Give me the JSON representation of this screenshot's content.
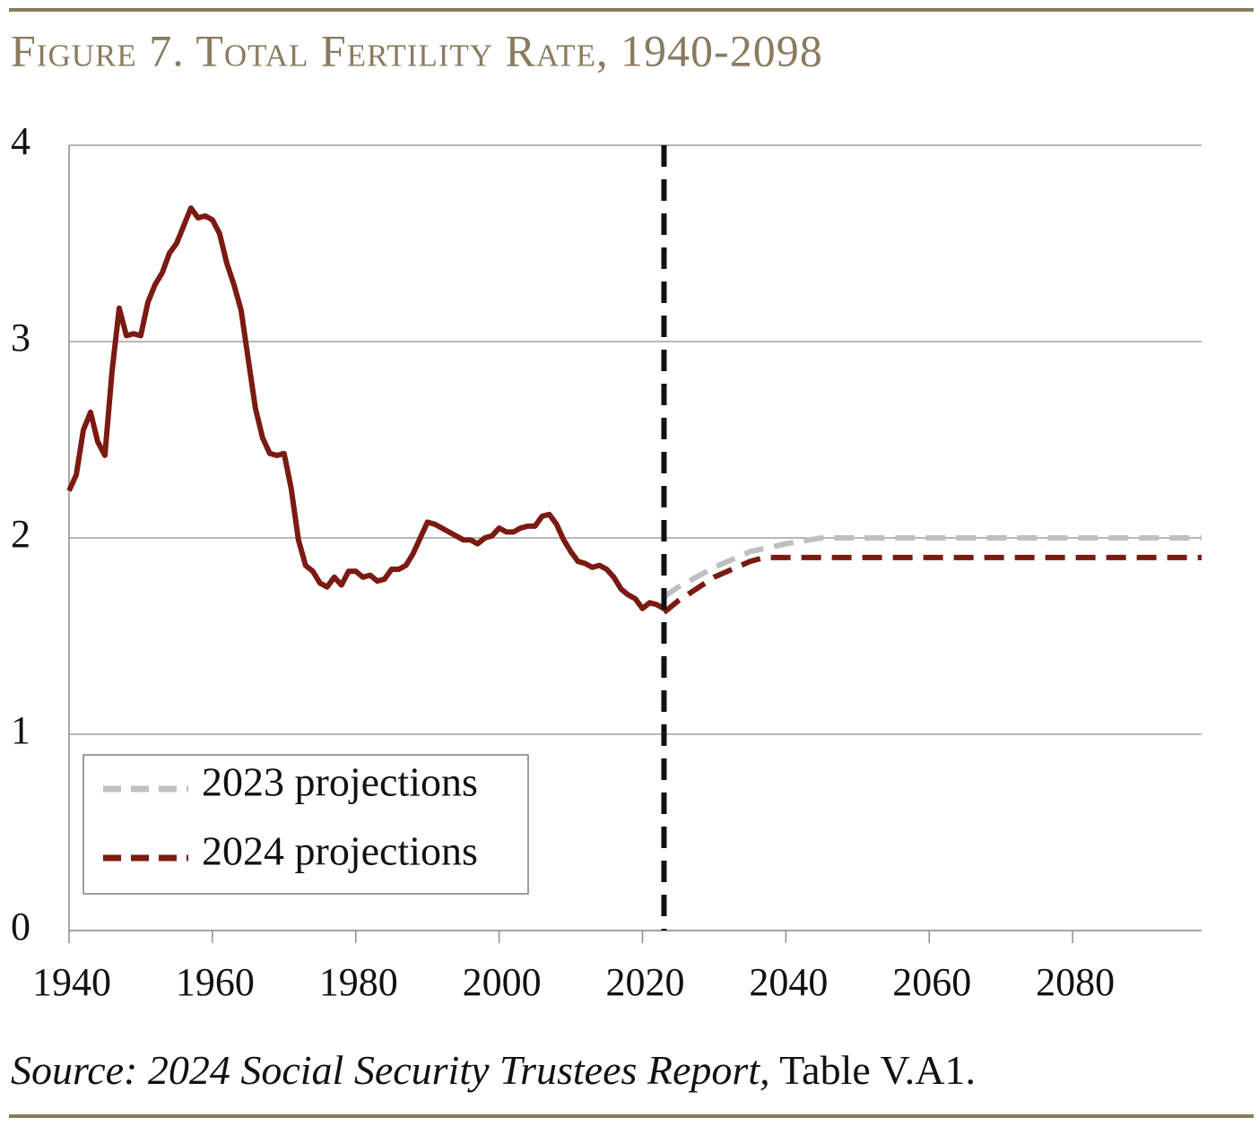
{
  "chart_data": {
    "type": "line",
    "title": "Figure 7. Total Fertility Rate, 1940-2098",
    "source_italic": "Source: 2024 Social Security Trustees Report,",
    "source_rest": "Table V.A1.",
    "xlim": [
      1940,
      2098
    ],
    "xticks": [
      1940,
      1960,
      1980,
      2000,
      2020,
      2040,
      2060,
      2080
    ],
    "ylim": [
      0,
      4
    ],
    "yticks": [
      0,
      1,
      2,
      3,
      4
    ],
    "grid": true,
    "vline_x": 2023,
    "legend": "lower left",
    "series": [
      {
        "color": "#7b1a12",
        "style": "solid",
        "x": [
          1940,
          1941,
          1942,
          1943,
          1944,
          1945,
          1946,
          1947,
          1948,
          1949,
          1950,
          1951,
          1952,
          1953,
          1954,
          1955,
          1956,
          1957,
          1958,
          1959,
          1960,
          1961,
          1962,
          1963,
          1964,
          1965,
          1966,
          1967,
          1968,
          1969,
          1970,
          1971,
          1972,
          1973,
          1974,
          1975,
          1976,
          1977,
          1978,
          1979,
          1980,
          1981,
          1982,
          1983,
          1984,
          1985,
          1986,
          1987,
          1988,
          1989,
          1990,
          1991,
          1992,
          1993,
          1994,
          1995,
          1996,
          1997,
          1998,
          1999,
          2000,
          2001,
          2002,
          2003,
          2004,
          2005,
          2006,
          2007,
          2008,
          2009,
          2010,
          2011,
          2012,
          2013,
          2014,
          2015,
          2016,
          2017,
          2018,
          2019,
          2020,
          2021,
          2022,
          2023
        ],
        "values": [
          2.24,
          2.32,
          2.55,
          2.64,
          2.49,
          2.42,
          2.85,
          3.17,
          3.03,
          3.04,
          3.03,
          3.2,
          3.29,
          3.35,
          3.45,
          3.5,
          3.59,
          3.68,
          3.63,
          3.64,
          3.62,
          3.55,
          3.4,
          3.29,
          3.16,
          2.91,
          2.66,
          2.51,
          2.43,
          2.42,
          2.43,
          2.25,
          1.99,
          1.86,
          1.83,
          1.77,
          1.75,
          1.8,
          1.76,
          1.83,
          1.83,
          1.8,
          1.81,
          1.78,
          1.79,
          1.84,
          1.84,
          1.86,
          1.92,
          2.0,
          2.08,
          2.07,
          2.05,
          2.03,
          2.01,
          1.99,
          1.99,
          1.97,
          2.0,
          2.01,
          2.05,
          2.03,
          2.03,
          2.05,
          2.06,
          2.06,
          2.11,
          2.12,
          2.07,
          1.99,
          1.93,
          1.88,
          1.87,
          1.85,
          1.86,
          1.84,
          1.8,
          1.74,
          1.71,
          1.69,
          1.64,
          1.67,
          1.66,
          1.64
        ]
      },
      {
        "name": "2023 projections",
        "color": "#bfbfbf",
        "style": "dashed",
        "x": [
          2023,
          2025,
          2030,
          2035,
          2040,
          2045,
          2098
        ],
        "values": [
          1.7,
          1.75,
          1.85,
          1.93,
          1.97,
          2.0,
          2.0
        ]
      },
      {
        "name": "2024 projections",
        "color": "#7b1a12",
        "style": "dashed",
        "x": [
          2023,
          2025,
          2030,
          2035,
          2037,
          2098
        ],
        "values": [
          1.62,
          1.68,
          1.8,
          1.88,
          1.9,
          1.9
        ]
      }
    ]
  }
}
